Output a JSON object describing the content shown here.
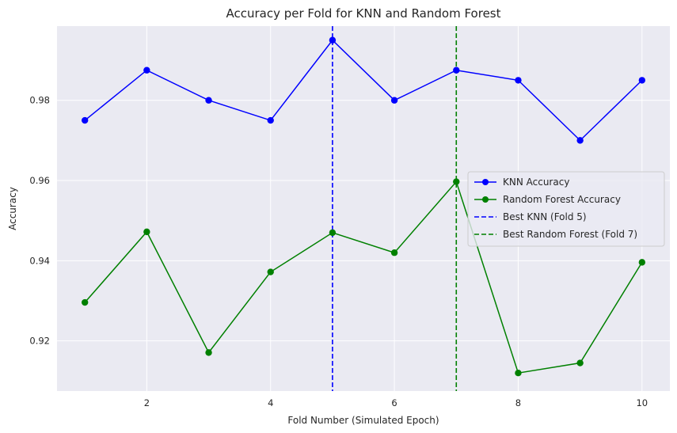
{
  "chart_data": {
    "type": "line",
    "title": "Accuracy per Fold for KNN and Random Forest",
    "xlabel": "Fold Number (Simulated Epoch)",
    "ylabel": "Accuracy",
    "x": [
      1,
      2,
      3,
      4,
      5,
      6,
      7,
      8,
      9,
      10
    ],
    "xlim": [
      0.55,
      10.45
    ],
    "ylim": [
      0.9075,
      0.9985
    ],
    "xticks": [
      2,
      4,
      6,
      8,
      10
    ],
    "yticks": [
      0.92,
      0.94,
      0.96,
      0.98
    ],
    "xtick_labels": [
      "2",
      "4",
      "6",
      "8",
      "10"
    ],
    "ytick_labels": [
      "0.92",
      "0.94",
      "0.96",
      "0.98"
    ],
    "grid": true,
    "legend_position": "center-right",
    "series": [
      {
        "name": "KNN Accuracy",
        "color": "#0000ff",
        "marker": "circle",
        "values": [
          0.975,
          0.9875,
          0.98,
          0.975,
          0.995,
          0.98,
          0.9875,
          0.985,
          0.97,
          0.985
        ]
      },
      {
        "name": "Random Forest Accuracy",
        "color": "#008000",
        "marker": "circle",
        "values": [
          0.9296,
          0.9472,
          0.9171,
          0.9372,
          0.947,
          0.942,
          0.9597,
          0.912,
          0.9145,
          0.9396
        ]
      }
    ],
    "reference_lines": [
      {
        "name": "Best KNN (Fold 5)",
        "x": 5,
        "color": "#0000ff",
        "style": "dashed"
      },
      {
        "name": "Best Random Forest (Fold 7)",
        "x": 7,
        "color": "#008000",
        "style": "dashed"
      }
    ],
    "colors": {
      "plot_background": "#eaeaf2",
      "grid": "#ffffff"
    }
  }
}
